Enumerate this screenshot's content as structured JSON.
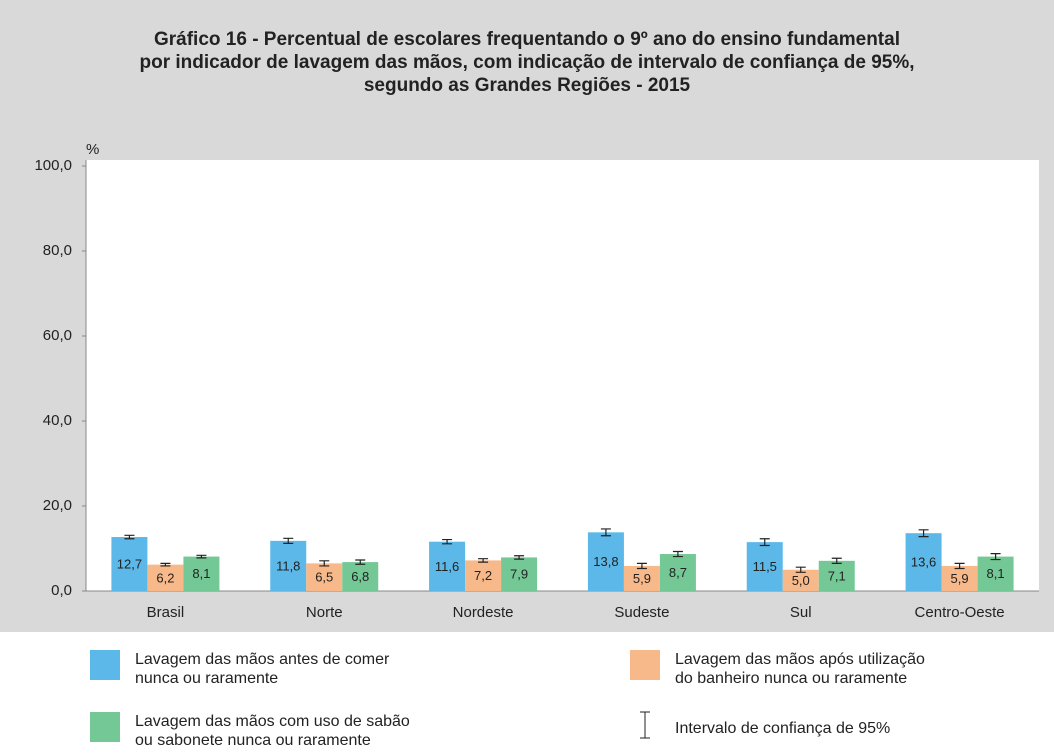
{
  "chart_data": {
    "type": "bar",
    "title": [
      "Gráfico 16 - Percentual de escolares frequentando o 9º ano do ensino fundamental",
      "por indicador de lavagem das mãos, com indicação de intervalo de confiança de 95%,",
      "segundo as Grandes Regiões - 2015"
    ],
    "ylabel": "%",
    "categories": [
      "Brasil",
      "Norte",
      "Nordeste",
      "Sudeste",
      "Sul",
      "Centro-Oeste"
    ],
    "series": [
      {
        "name": "Lavagem das mãos antes de comer\nnunca ou raramente",
        "color": "#5bb8e8",
        "values": [
          12.7,
          11.8,
          11.6,
          13.8,
          11.5,
          13.6
        ],
        "value_labels": [
          "12,7",
          "11,8",
          "11,6",
          "13,8",
          "11,5",
          "13,6"
        ],
        "errors": [
          0.4,
          0.6,
          0.5,
          0.8,
          0.8,
          0.8
        ]
      },
      {
        "name": "Lavagem das mãos após utilização\ndo banheiro nunca ou raramente",
        "color": "#f8b98a",
        "values": [
          6.2,
          6.5,
          7.2,
          5.9,
          5.0,
          5.9
        ],
        "value_labels": [
          "6,2",
          "6,5",
          "7,2",
          "5,9",
          "5,0",
          "5,9"
        ],
        "errors": [
          0.3,
          0.6,
          0.4,
          0.6,
          0.6,
          0.6
        ]
      },
      {
        "name": "Lavagem das mãos com uso de sabão\nou sabonete nunca ou raramente",
        "color": "#74c896",
        "values": [
          8.1,
          6.8,
          7.9,
          8.7,
          7.1,
          8.1
        ],
        "value_labels": [
          "8,1",
          "6,8",
          "7,9",
          "8,7",
          "7,1",
          "8,1"
        ],
        "errors": [
          0.3,
          0.5,
          0.4,
          0.6,
          0.6,
          0.7
        ]
      }
    ],
    "error_legend": "Intervalo de confiança de 95%",
    "ylim": [
      0,
      100
    ],
    "yticks": [
      {
        "value": 0,
        "label": "0,0"
      },
      {
        "value": 20,
        "label": "20,0"
      },
      {
        "value": 40,
        "label": "40,0"
      },
      {
        "value": 60,
        "label": "60,0"
      },
      {
        "value": 80,
        "label": "80,0"
      },
      {
        "value": 100,
        "label": "100,0"
      }
    ]
  }
}
